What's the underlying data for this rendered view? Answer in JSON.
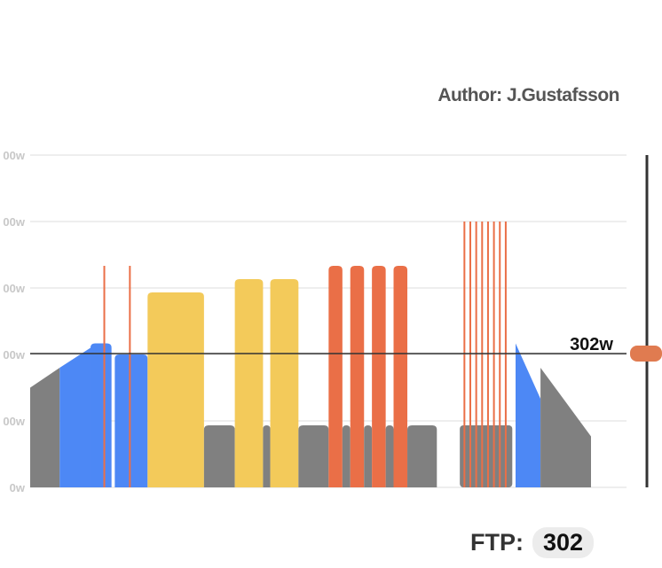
{
  "author": "Author: J.Gustafsson",
  "ftp": {
    "label": "FTP:",
    "value": "302",
    "line_label": "302w"
  },
  "colors": {
    "recovery": "#808080",
    "endurance": "#4d88f5",
    "tempo": "#f3ca5a",
    "vo2": "#ea6f47",
    "slider_handle": "#e07b50",
    "ftp_line": "#333333",
    "grid": "#dddddd"
  },
  "chart_data": {
    "type": "area",
    "x_unit": "workout segment",
    "y_unit": "w",
    "ylim": [
      0,
      750
    ],
    "yticks": [
      "0w",
      "00w",
      "00w",
      "00w",
      "00w",
      "00w"
    ],
    "ftp": 302,
    "grid": true,
    "segments": [
      {
        "zone": "recovery",
        "start": 0,
        "end": 4.5,
        "p0": 225,
        "p1": 270
      },
      {
        "zone": "endurance",
        "start": 4.5,
        "end": 9.2,
        "p0": 270,
        "p1": 315
      },
      {
        "zone": "endurance",
        "start": 9.2,
        "end": 12.4,
        "p0": 325,
        "p1": 325
      },
      {
        "zone": "endurance",
        "start": 12.9,
        "end": 17.9,
        "p0": 300,
        "p1": 300
      },
      {
        "zone": "tempo",
        "start": 17.9,
        "end": 26.5,
        "p0": 440,
        "p1": 440
      },
      {
        "zone": "recovery",
        "start": 26.5,
        "end": 31.2,
        "p0": 140,
        "p1": 140
      },
      {
        "zone": "tempo",
        "start": 31.2,
        "end": 35.5,
        "p0": 470,
        "p1": 470
      },
      {
        "zone": "recovery",
        "start": 35.5,
        "end": 36.6,
        "p0": 140,
        "p1": 140
      },
      {
        "zone": "tempo",
        "start": 36.6,
        "end": 40.9,
        "p0": 470,
        "p1": 470
      },
      {
        "zone": "recovery",
        "start": 40.9,
        "end": 45.5,
        "p0": 140,
        "p1": 140
      },
      {
        "zone": "vo2",
        "start": 45.5,
        "end": 47.6,
        "p0": 500,
        "p1": 500
      },
      {
        "zone": "recovery",
        "start": 47.6,
        "end": 48.8,
        "p0": 140,
        "p1": 140
      },
      {
        "zone": "vo2",
        "start": 48.8,
        "end": 50.9,
        "p0": 500,
        "p1": 500
      },
      {
        "zone": "recovery",
        "start": 50.9,
        "end": 52.1,
        "p0": 140,
        "p1": 140
      },
      {
        "zone": "vo2",
        "start": 52.1,
        "end": 54.2,
        "p0": 500,
        "p1": 500
      },
      {
        "zone": "recovery",
        "start": 54.2,
        "end": 55.4,
        "p0": 140,
        "p1": 140
      },
      {
        "zone": "vo2",
        "start": 55.4,
        "end": 57.5,
        "p0": 500,
        "p1": 500
      },
      {
        "zone": "recovery",
        "start": 57.5,
        "end": 62.0,
        "p0": 140,
        "p1": 140
      },
      {
        "zone": "endurance",
        "start": 74.0,
        "end": 77.8,
        "p0": 325,
        "p1": 200
      },
      {
        "zone": "recovery",
        "start": 77.8,
        "end": 85.5,
        "p0": 270,
        "p1": 115
      }
    ],
    "spikes": [
      {
        "zone": "vo2",
        "x": 11.3,
        "value": 500
      },
      {
        "zone": "vo2",
        "x": 15.2,
        "value": 500
      },
      {
        "zone": "vo2",
        "x": 66.2,
        "value": 600
      },
      {
        "zone": "vo2",
        "x": 67.1,
        "value": 600
      },
      {
        "zone": "vo2",
        "x": 68.0,
        "value": 600
      },
      {
        "zone": "vo2",
        "x": 68.9,
        "value": 600
      },
      {
        "zone": "vo2",
        "x": 69.8,
        "value": 600
      },
      {
        "zone": "vo2",
        "x": 70.7,
        "value": 600
      },
      {
        "zone": "vo2",
        "x": 71.6,
        "value": 600
      },
      {
        "zone": "vo2",
        "x": 72.5,
        "value": 600
      }
    ],
    "spike_base": {
      "start": 65.5,
      "end": 73.5,
      "value": 140,
      "zone": "recovery"
    },
    "xlim": [
      0,
      85.5
    ]
  }
}
